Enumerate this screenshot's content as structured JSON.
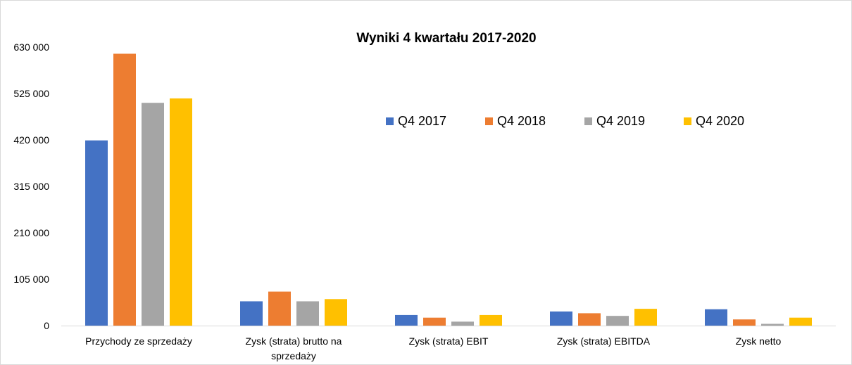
{
  "chart_data": {
    "type": "bar",
    "title": "Wyniki 4 kwartału 2017-2020",
    "categories": [
      [
        "Przychody ze sprzedaży"
      ],
      [
        "Zysk (strata) brutto na",
        "sprzedaży"
      ],
      [
        "Zysk (strata) EBIT"
      ],
      [
        "Zysk (strata) EBITDA"
      ],
      [
        "Zysk netto"
      ]
    ],
    "series": [
      {
        "name": "Q4 2017",
        "color": "#4472C4",
        "values": [
          419000,
          55000,
          24000,
          32000,
          37000
        ]
      },
      {
        "name": "Q4 2018",
        "color": "#ED7D31",
        "values": [
          615000,
          77000,
          18000,
          28000,
          14000
        ]
      },
      {
        "name": "Q4 2019",
        "color": "#A5A5A5",
        "values": [
          504000,
          55000,
          9000,
          22000,
          4000
        ]
      },
      {
        "name": "Q4 2020",
        "color": "#FFC000",
        "values": [
          514000,
          60000,
          24000,
          38000,
          18000
        ]
      }
    ],
    "yticks": [
      "0",
      "105 000",
      "210 000",
      "315 000",
      "420 000",
      "525 000",
      "630 000"
    ],
    "ylim": [
      0,
      630000
    ],
    "grid": false,
    "legend_position": "top-right",
    "xlabel": "",
    "ylabel": ""
  }
}
